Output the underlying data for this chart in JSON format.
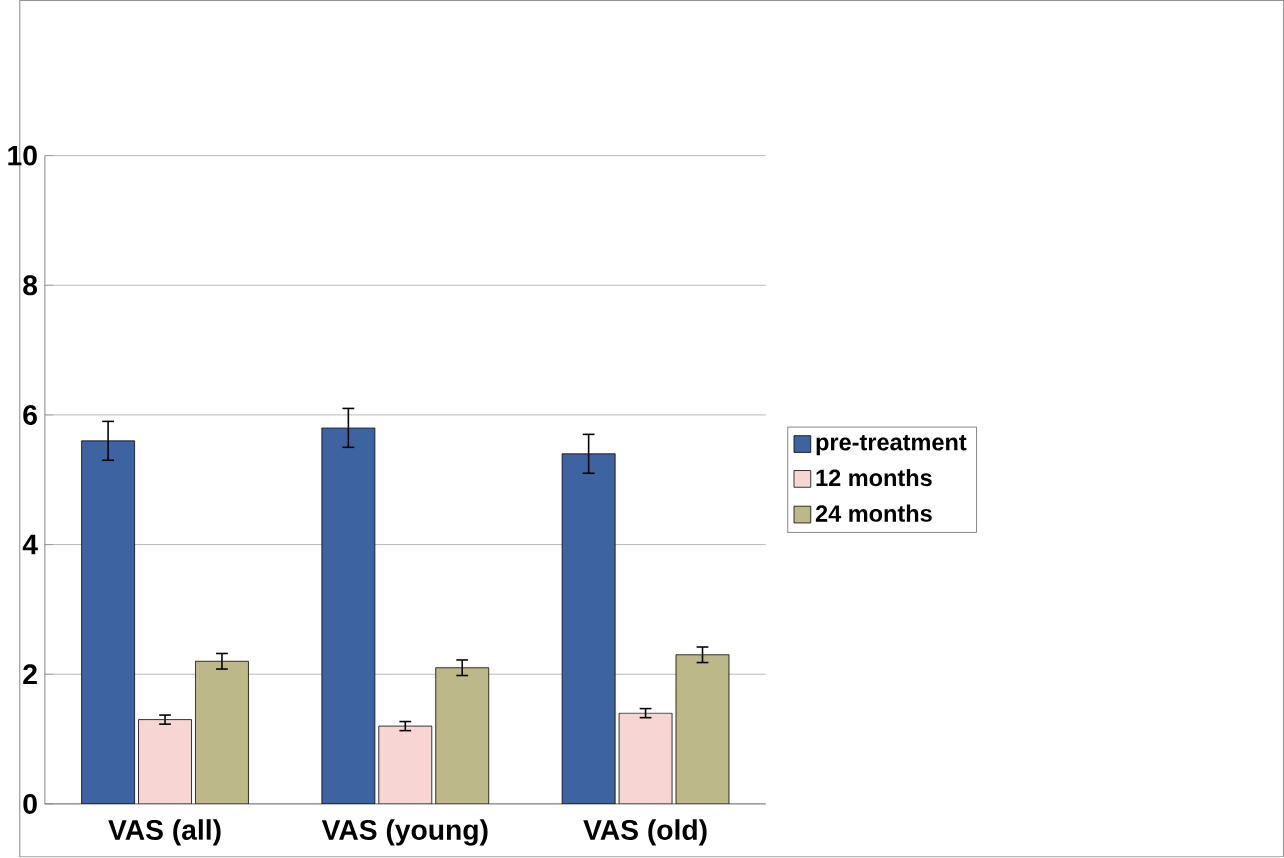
{
  "chart_data": {
    "type": "bar",
    "categories": [
      "VAS (all)",
      "VAS (young)",
      "VAS (old)"
    ],
    "series": [
      {
        "name": "pre-treatment",
        "color": "#3d64a0",
        "values": [
          5.6,
          5.8,
          5.4
        ],
        "errors": [
          0.3,
          0.3,
          0.3
        ]
      },
      {
        "name": "12 months",
        "color": "#f6d5d3",
        "values": [
          1.3,
          1.2,
          1.4
        ],
        "errors": [
          0.07,
          0.07,
          0.07
        ]
      },
      {
        "name": "24 months",
        "color": "#bdb88a",
        "values": [
          2.2,
          2.1,
          2.3
        ],
        "errors": [
          0.12,
          0.12,
          0.12
        ]
      }
    ],
    "ylim": [
      0,
      10
    ],
    "yticks": [
      0,
      2,
      4,
      6,
      8,
      10
    ],
    "grid": "y",
    "legend": "right"
  }
}
